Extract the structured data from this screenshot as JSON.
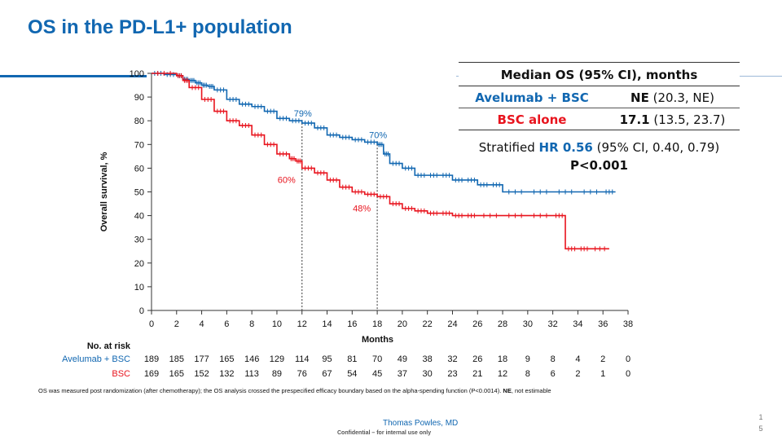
{
  "slide": {
    "title": "OS in the PD-L1+ population",
    "footnote_pre": "OS was measured post randomization  (after chemotherapy);  the OS analysis crossed the prespecified  efficacy boundary  based on the alpha-spending  function  (P<0.0014). ",
    "footnote_bold": "NE",
    "footnote_post": ", not estimable",
    "presenter": "Thomas Powles, MD",
    "confidential": "Confidential – for internal use only",
    "page_number": "15"
  },
  "summary_table": {
    "header": "Median OS (95% CI), months",
    "rows": [
      {
        "arm": "Avelumab + BSC",
        "bold": "NE",
        "rest": " (20.3, NE)",
        "color": "#1167b1"
      },
      {
        "arm": "BSC alone",
        "bold": "17.1",
        "rest": " (13.5, 23.7)",
        "color": "#e8141e"
      }
    ],
    "hr_prefix": "Stratified ",
    "hr_value": "HR 0.56",
    "hr_suffix": "  (95% CI, 0.40, 0.79)",
    "p_value": "P<0.001"
  },
  "chart_data": {
    "type": "line",
    "xlabel": "Months",
    "ylabel": "Overall survival, %",
    "xlim": [
      0,
      38
    ],
    "ylim": [
      0,
      100
    ],
    "xticks": [
      0,
      2,
      4,
      6,
      8,
      10,
      12,
      14,
      16,
      18,
      20,
      22,
      24,
      26,
      28,
      30,
      32,
      34,
      36,
      38
    ],
    "yticks": [
      0,
      10,
      20,
      30,
      40,
      50,
      60,
      70,
      80,
      90,
      100
    ],
    "step": true,
    "series": [
      {
        "name": "Avelumab + BSC",
        "color": "#1167b1",
        "x": [
          0,
          1,
          2,
          2.5,
          3,
          3.5,
          4,
          4.5,
          5,
          6,
          7,
          8,
          9,
          10,
          11,
          12,
          13,
          14,
          15,
          16,
          17,
          18,
          18.5,
          19,
          20,
          21,
          22,
          23,
          24,
          25,
          26,
          27,
          28,
          30,
          32,
          34,
          36,
          37
        ],
        "y": [
          100,
          99.5,
          99,
          97.5,
          97,
          96,
          95,
          94.5,
          93,
          89,
          87,
          86,
          84,
          81,
          80,
          79,
          77,
          74,
          73,
          72,
          71,
          70,
          66,
          62,
          60,
          57,
          57,
          57,
          55,
          55,
          53,
          53,
          50,
          50,
          50,
          50,
          50,
          50
        ]
      },
      {
        "name": "BSC",
        "color": "#e8141e",
        "x": [
          0,
          2,
          2.5,
          3,
          4,
          5,
          6,
          7,
          8,
          9,
          10,
          11,
          11.5,
          12,
          13,
          14,
          15,
          16,
          17,
          18,
          19,
          20,
          21,
          22,
          23,
          24,
          25,
          26,
          28,
          30,
          32,
          33,
          34,
          35,
          36.5
        ],
        "y": [
          100,
          99,
          97,
          94,
          89,
          84,
          80,
          78,
          74,
          70,
          66,
          64,
          63,
          60,
          58,
          55,
          52,
          50,
          49,
          48,
          45,
          43,
          42,
          41,
          41,
          40,
          40,
          40,
          40,
          40,
          40,
          26,
          26,
          26,
          26
        ]
      }
    ],
    "annotations": [
      {
        "text": "79%",
        "x": 12,
        "y": 79,
        "color": "#1167b1"
      },
      {
        "text": "60%",
        "x": 12,
        "y": 60,
        "color": "#e8141e"
      },
      {
        "text": "70%",
        "x": 18,
        "y": 70,
        "color": "#1167b1"
      },
      {
        "text": "48%",
        "x": 18,
        "y": 48,
        "color": "#e8141e"
      }
    ],
    "reference_lines_x": [
      12,
      18
    ]
  },
  "risk_table": {
    "title": "No. at risk",
    "rows": [
      {
        "label": "Avelumab + BSC",
        "color": "#1167b1",
        "values": [
          "189",
          "185",
          "177",
          "165",
          "146",
          "129",
          "114",
          "95",
          "81",
          "70",
          "49",
          "38",
          "32",
          "26",
          "18",
          "9",
          "8",
          "4",
          "2",
          "0"
        ]
      },
      {
        "label": "BSC",
        "color": "#e8141e",
        "values": [
          "169",
          "165",
          "152",
          "132",
          "113",
          "89",
          "76",
          "67",
          "54",
          "45",
          "37",
          "30",
          "23",
          "21",
          "12",
          "8",
          "6",
          "2",
          "1",
          "0"
        ]
      }
    ]
  }
}
